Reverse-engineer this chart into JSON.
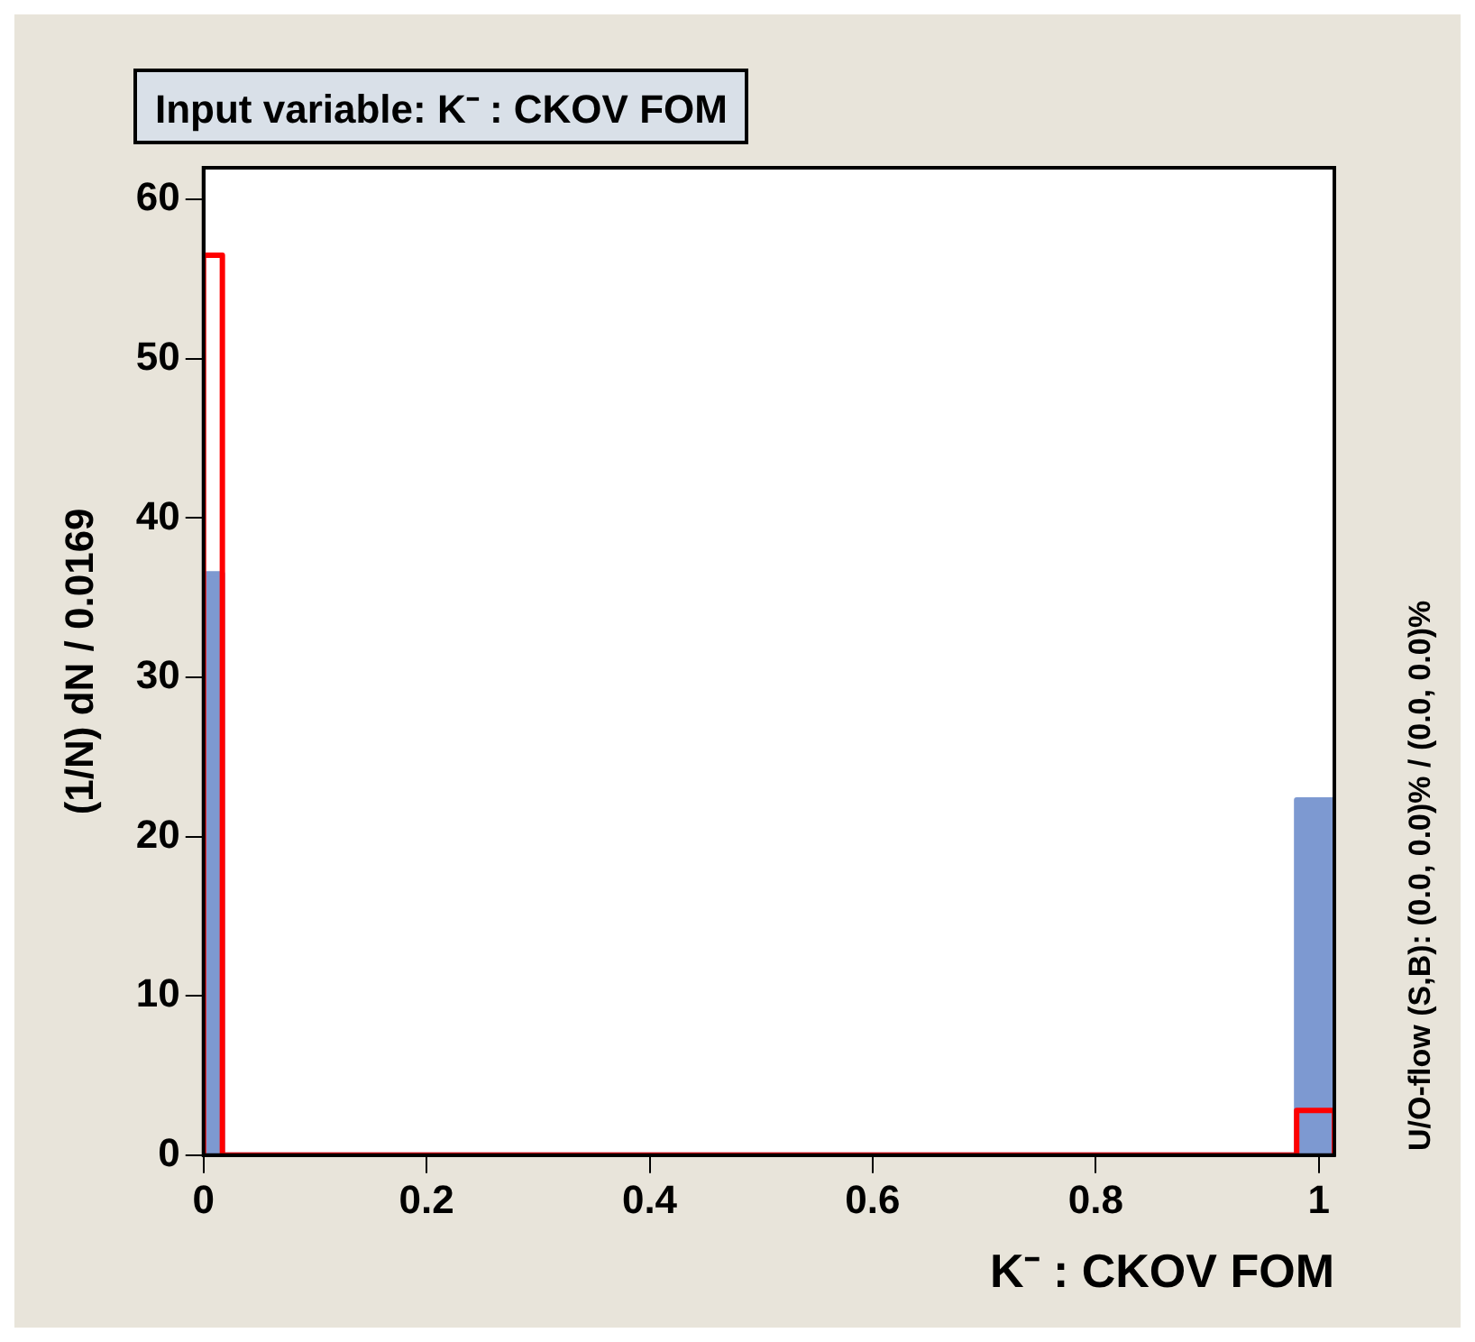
{
  "chart_data": {
    "type": "histogram",
    "title": "Input variable: K⁻ : CKOV FOM",
    "xlabel": "K⁻ : CKOV FOM",
    "ylabel": "(1/N) dN / 0.0169",
    "bins": [
      0,
      0.0169,
      0.9802,
      1.014
    ],
    "series": [
      {
        "color": "#7d99d1",
        "values": [
          36.5,
          0,
          22.3
        ]
      },
      {
        "color": "#ff0000",
        "values": [
          56.5,
          0,
          2.8
        ]
      }
    ],
    "xlim": [
      0,
      1.014
    ],
    "xticks": [
      0,
      0.2,
      0.4,
      0.6,
      0.8,
      1
    ],
    "ylim": [
      0,
      62
    ],
    "yticks": [
      0,
      10,
      20,
      30,
      40,
      50,
      60
    ],
    "annotations": [
      "U/O-flow (S,B): (0.0, 0.0)% / (0.0, 0.0)%"
    ],
    "grid": false,
    "legend": false
  }
}
